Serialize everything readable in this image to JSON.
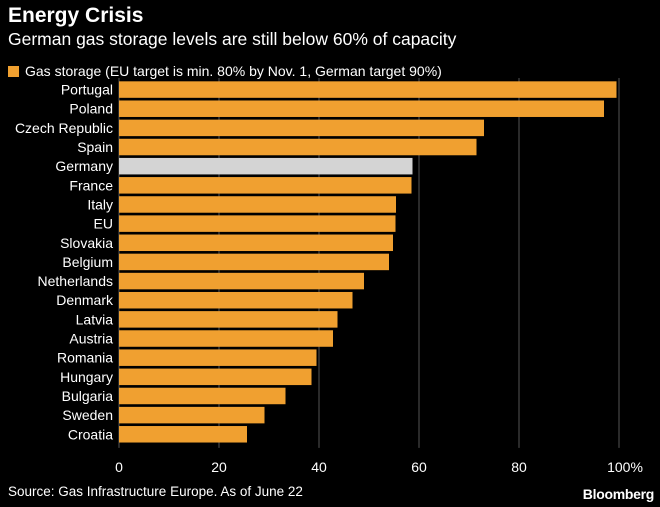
{
  "header": {
    "title": "Energy Crisis",
    "subtitle": "German gas storage levels are still below 60% of capacity"
  },
  "footer": {
    "source": "Source: Gas Infrastructure Europe. As of June 22",
    "brand": "Bloomberg"
  },
  "colors": {
    "bar": "#f0a030",
    "highlight": "#d4d4d4",
    "background": "#000000",
    "grid": "#555555"
  },
  "chart_data": {
    "type": "bar",
    "orientation": "horizontal",
    "title": "Energy Crisis",
    "subtitle": "German gas storage levels are still below 60% of capacity",
    "legend": "Gas storage (EU target is min. 80% by Nov. 1, German target 90%)",
    "categories": [
      "Portugal",
      "Poland",
      "Czech Republic",
      "Spain",
      "Germany",
      "France",
      "Italy",
      "EU",
      "Slovakia",
      "Belgium",
      "Netherlands",
      "Denmark",
      "Latvia",
      "Austria",
      "Romania",
      "Hungary",
      "Bulgaria",
      "Sweden",
      "Croatia"
    ],
    "values": [
      99.5,
      97,
      73,
      71.5,
      58.7,
      58.5,
      55.4,
      55.3,
      54.8,
      54,
      49,
      46.7,
      43.7,
      42.8,
      39.5,
      38.5,
      33.3,
      29.1,
      25.6
    ],
    "highlight": "Germany",
    "xlim": [
      0,
      100
    ],
    "xticks": [
      0,
      20,
      40,
      60,
      80,
      100
    ],
    "xtick_labels": [
      "0",
      "20",
      "40",
      "60",
      "80",
      "100%"
    ],
    "xlabel": "",
    "ylabel": "",
    "grid": "vertical",
    "legend_position": "top-left"
  }
}
